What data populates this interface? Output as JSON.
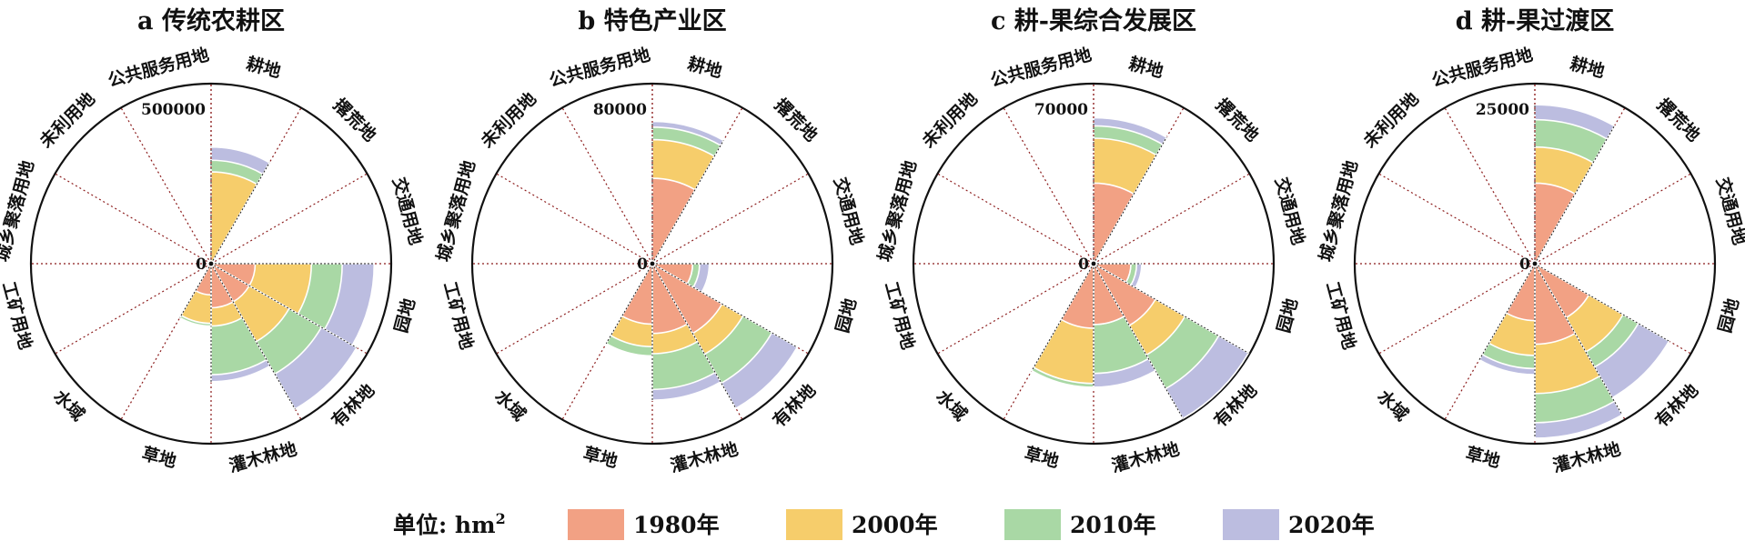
{
  "chart_data": {
    "type": "rose",
    "categories": [
      "耕地",
      "撂荒地",
      "交通用地",
      "园地",
      "有林地",
      "灌木林地",
      "草地",
      "水域",
      "工矿用地",
      "城乡聚落用地",
      "未利用地",
      "公共服务用地"
    ],
    "series_names": [
      "1980年",
      "2000年",
      "2010年",
      "2020年"
    ],
    "colors": {
      "1980年": "#f2a184",
      "2000年": "#f6cd6b",
      "2010年": "#a9d8a5",
      "2020年": "#bcbde0"
    },
    "unit_label": "单位: hm",
    "unit_sup": "2",
    "zero_label": "0",
    "panels": [
      {
        "title": "a 传统农耕区",
        "max_label": "500000",
        "rmax": 500000,
        "values": {
          "耕地": [
            0,
            130000,
            165000,
            210000
          ],
          "撂荒地": [
            0,
            0,
            0,
            0
          ],
          "交通用地": [
            0,
            0,
            0,
            0
          ],
          "园地": [
            30000,
            155000,
            265000,
            410000
          ],
          "有林地": [
            30000,
            125000,
            250000,
            435000
          ],
          "灌木林地": [
            30000,
            60000,
            190000,
            215000
          ],
          "草地": [
            15000,
            55000,
            60000,
            60000
          ],
          "水域": [
            0,
            0,
            0,
            0
          ],
          "工矿用地": [
            0,
            0,
            0,
            0
          ],
          "城乡聚落用地": [
            0,
            0,
            0,
            0
          ],
          "未利用地": [
            0,
            0,
            0,
            0
          ],
          "公共服务用地": [
            0,
            0,
            0,
            0
          ]
        }
      },
      {
        "title": "b 特色产业区",
        "max_label": "80000",
        "rmax": 80000,
        "values": {
          "耕地": [
            18000,
            38000,
            46000,
            50000
          ],
          "撂荒地": [
            0,
            0,
            0,
            0
          ],
          "交通用地": [
            0,
            0,
            0,
            0
          ],
          "园地": [
            4000,
            4000,
            5500,
            8000
          ],
          "有林地": [
            16000,
            27000,
            47000,
            69000
          ],
          "灌木林地": [
            12000,
            20000,
            39000,
            46000
          ],
          "草地": [
            9000,
            17000,
            21000,
            21000
          ],
          "水域": [
            0,
            0,
            0,
            0
          ],
          "工矿用地": [
            0,
            0,
            0,
            0
          ],
          "城乡聚落用地": [
            0,
            0,
            0,
            0
          ],
          "未利用地": [
            0,
            0,
            0,
            0
          ],
          "公共服务用地": [
            0,
            0,
            0,
            0
          ]
        }
      },
      {
        "title": "c 耕-果综合发展区",
        "max_label": "70000",
        "rmax": 70000,
        "values": {
          "耕地": [
            14000,
            34000,
            41000,
            46000
          ],
          "撂荒地": [
            0,
            0,
            0,
            0
          ],
          "交通用地": [
            0,
            0,
            0,
            0
          ],
          "园地": [
            3000,
            3000,
            4000,
            5000
          ],
          "有林地": [
            11000,
            24000,
            45000,
            69000
          ],
          "灌木林地": [
            8000,
            8000,
            26000,
            33000
          ],
          "草地": [
            9000,
            31000,
            33000,
            33000
          ],
          "水域": [
            0,
            0,
            0,
            0
          ],
          "工矿用地": [
            0,
            0,
            0,
            0
          ],
          "城乡聚落用地": [
            0,
            0,
            0,
            0
          ],
          "未利用地": [
            0,
            0,
            0,
            0
          ],
          "公共服务用地": [
            0,
            0,
            0,
            0
          ]
        }
      },
      {
        "title": "d 耕-果过渡区",
        "max_label": "25000",
        "rmax": 25000,
        "values": {
          "耕地": [
            5000,
            10500,
            16000,
            19500
          ],
          "撂荒地": [
            0,
            0,
            0,
            0
          ],
          "交通用地": [
            0,
            0,
            0,
            0
          ],
          "园地": [
            0,
            0,
            0,
            0
          ],
          "有林地": [
            3000,
            8000,
            11000,
            18500
          ],
          "灌木林地": [
            5000,
            13000,
            19500,
            23500
          ],
          "草地": [
            2500,
            6500,
            8500,
            9500
          ],
          "水域": [
            0,
            0,
            0,
            0
          ],
          "工矿用地": [
            0,
            0,
            0,
            0
          ],
          "城乡聚落用地": [
            0,
            0,
            0,
            0
          ],
          "未利用地": [
            0,
            0,
            0,
            0
          ],
          "公共服务用地": [
            0,
            0,
            0,
            0
          ]
        }
      }
    ]
  }
}
